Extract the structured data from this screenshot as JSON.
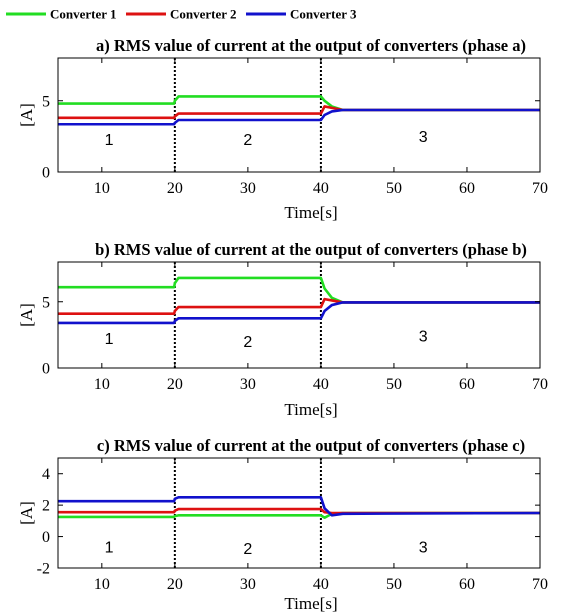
{
  "chart_data": {
    "legend": {
      "placement": "top-left",
      "entries": [
        {
          "name": "Converter 1",
          "color": "#22dd22"
        },
        {
          "name": "Converter 2",
          "color": "#dd1111"
        },
        {
          "name": "Converter 3",
          "color": "#1111cc"
        }
      ]
    },
    "charts": [
      {
        "type": "line",
        "title": "a) RMS value of current at the output of converters (phase a)",
        "xlabel": "Time[s]",
        "ylabel": "[A]",
        "xlim": [
          4,
          70
        ],
        "ylim": [
          0,
          8
        ],
        "xticks": [
          "10",
          "20",
          "30",
          "40",
          "50",
          "60",
          "70"
        ],
        "yticks": [
          "0",
          "5"
        ],
        "ytick_values": [
          0,
          5
        ],
        "grid": false,
        "event_lines": [
          20,
          40
        ],
        "region_labels": [
          {
            "text": "1",
            "x": 11,
            "y": 1.9
          },
          {
            "text": "2",
            "x": 30,
            "y": 1.9
          },
          {
            "text": "3",
            "x": 54,
            "y": 2.1
          }
        ],
        "series": [
          {
            "name": "Converter 1",
            "x": [
              4,
              19.9,
              20.0,
              20.5,
              40.0,
              40.5,
              41.5,
              43,
              70
            ],
            "y": [
              4.8,
              4.8,
              5.0,
              5.3,
              5.3,
              5.0,
              4.6,
              4.35,
              4.35
            ]
          },
          {
            "name": "Converter 2",
            "x": [
              4,
              19.9,
              20.0,
              20.5,
              40.0,
              40.5,
              41.5,
              43,
              70
            ],
            "y": [
              3.8,
              3.8,
              3.9,
              4.1,
              4.1,
              4.6,
              4.5,
              4.35,
              4.35
            ]
          },
          {
            "name": "Converter 3",
            "x": [
              4,
              19.9,
              20.0,
              20.5,
              40.0,
              40.5,
              41.5,
              43,
              70
            ],
            "y": [
              3.35,
              3.35,
              3.45,
              3.65,
              3.65,
              4.0,
              4.25,
              4.35,
              4.35
            ]
          }
        ]
      },
      {
        "type": "line",
        "title": "b) RMS value of current at the output of converters (phase b)",
        "xlabel": "Time[s]",
        "ylabel": "[A]",
        "xlim": [
          4,
          70
        ],
        "ylim": [
          0,
          8
        ],
        "xticks": [
          "10",
          "20",
          "30",
          "40",
          "50",
          "60",
          "70"
        ],
        "yticks": [
          "0",
          "5"
        ],
        "ytick_values": [
          0,
          5
        ],
        "grid": false,
        "event_lines": [
          20,
          40
        ],
        "region_labels": [
          {
            "text": "1",
            "x": 11,
            "y": 1.8
          },
          {
            "text": "2",
            "x": 30,
            "y": 1.6
          },
          {
            "text": "3",
            "x": 54,
            "y": 2.0
          }
        ],
        "series": [
          {
            "name": "Converter 1",
            "x": [
              4,
              19.9,
              20.0,
              20.5,
              40.0,
              40.5,
              41.5,
              43,
              70
            ],
            "y": [
              6.1,
              6.1,
              6.4,
              6.8,
              6.8,
              6.0,
              5.3,
              4.95,
              4.95
            ]
          },
          {
            "name": "Converter 2",
            "x": [
              4,
              19.9,
              20.0,
              20.5,
              40.0,
              40.5,
              41.5,
              43,
              70
            ],
            "y": [
              4.1,
              4.1,
              4.3,
              4.6,
              4.6,
              5.2,
              5.1,
              4.95,
              4.95
            ]
          },
          {
            "name": "Converter 3",
            "x": [
              4,
              19.9,
              20.0,
              20.5,
              40.0,
              40.5,
              41.5,
              43,
              70
            ],
            "y": [
              3.4,
              3.4,
              3.55,
              3.75,
              3.75,
              4.3,
              4.75,
              4.95,
              4.95
            ]
          }
        ]
      },
      {
        "type": "line",
        "title": "c) RMS value of current at the output of converters (phase c)",
        "xlabel": "Time[s]",
        "ylabel": "[A]",
        "xlim": [
          4,
          70
        ],
        "ylim": [
          -2,
          5
        ],
        "xticks": [
          "10",
          "20",
          "30",
          "40",
          "50",
          "60",
          "70"
        ],
        "yticks": [
          "-2",
          "0",
          "2",
          "4"
        ],
        "ytick_values": [
          -2,
          0,
          2,
          4
        ],
        "grid": false,
        "event_lines": [
          20,
          40
        ],
        "region_labels": [
          {
            "text": "1",
            "x": 11,
            "y": -1.0
          },
          {
            "text": "2",
            "x": 30,
            "y": -1.1
          },
          {
            "text": "3",
            "x": 54,
            "y": -1.0
          }
        ],
        "series": [
          {
            "name": "Converter 1",
            "x": [
              4,
              19.9,
              20.0,
              20.5,
              40.0,
              40.5,
              41.5,
              43,
              70
            ],
            "y": [
              1.25,
              1.25,
              1.3,
              1.35,
              1.35,
              1.2,
              1.45,
              1.5,
              1.5
            ]
          },
          {
            "name": "Converter 2",
            "x": [
              4,
              19.9,
              20.0,
              20.5,
              40.0,
              40.5,
              41.5,
              43,
              70
            ],
            "y": [
              1.55,
              1.55,
              1.65,
              1.75,
              1.75,
              1.55,
              1.5,
              1.5,
              1.5
            ]
          },
          {
            "name": "Converter 3",
            "x": [
              4,
              19.9,
              20.0,
              20.5,
              40.0,
              40.5,
              41.5,
              43,
              70
            ],
            "y": [
              2.25,
              2.25,
              2.4,
              2.5,
              2.5,
              1.8,
              1.35,
              1.45,
              1.5
            ]
          }
        ]
      }
    ]
  }
}
